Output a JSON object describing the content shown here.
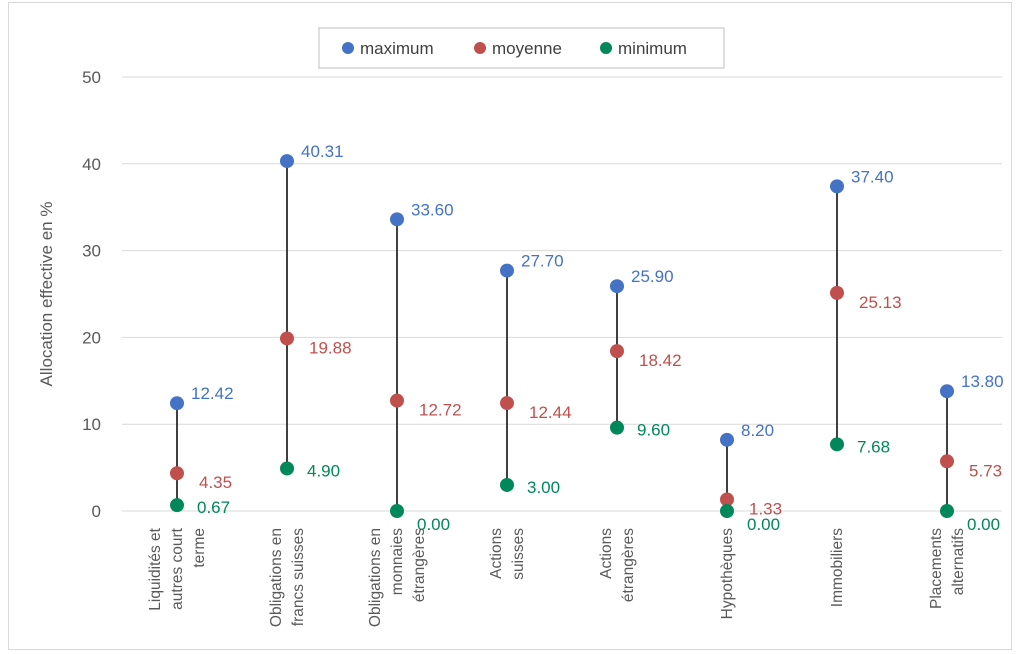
{
  "chart_data": {
    "type": "scatter",
    "title": "",
    "ylabel": "Allocation effective en %",
    "xlabel": "",
    "ylim": [
      0,
      50
    ],
    "yticks": [
      0,
      10,
      20,
      30,
      40,
      50
    ],
    "grid": true,
    "legend_position": "top-center",
    "categories": [
      [
        "Liquidités et",
        "autres court",
        "terme"
      ],
      [
        "Obligations en",
        "francs suisses"
      ],
      [
        "Obligations en",
        "monnaies",
        "étrangères"
      ],
      [
        "Actions",
        "suisses"
      ],
      [
        "Actions",
        "étrangères"
      ],
      [
        "Hypothèques"
      ],
      [
        "Immobiliers"
      ],
      [
        "Placements",
        "alternatifs"
      ]
    ],
    "series": [
      {
        "name": "maximum",
        "color": "#4472c4",
        "values": [
          12.42,
          40.31,
          33.6,
          27.7,
          25.9,
          8.2,
          37.4,
          13.8
        ],
        "labels": [
          "12.42",
          "40.31",
          "33.60",
          "27.70",
          "25.90",
          "8.20",
          "37.40",
          "13.80"
        ]
      },
      {
        "name": "moyenne",
        "color": "#c0504d",
        "values": [
          4.35,
          19.88,
          12.72,
          12.44,
          18.42,
          1.33,
          25.13,
          5.73
        ],
        "labels": [
          "4.35",
          "19.88",
          "12.72",
          "12.44",
          "18.42",
          "1.33",
          "25.13",
          "5.73"
        ]
      },
      {
        "name": "minimum",
        "color": "#00875a",
        "values": [
          0.67,
          4.9,
          0.0,
          3.0,
          9.6,
          0.0,
          7.68,
          0.0
        ],
        "labels": [
          "0.67",
          "4.90",
          "0.00",
          "3.00",
          "9.60",
          "0.00",
          "7.68",
          "0.00"
        ]
      }
    ],
    "range_line_color": "#404040"
  }
}
